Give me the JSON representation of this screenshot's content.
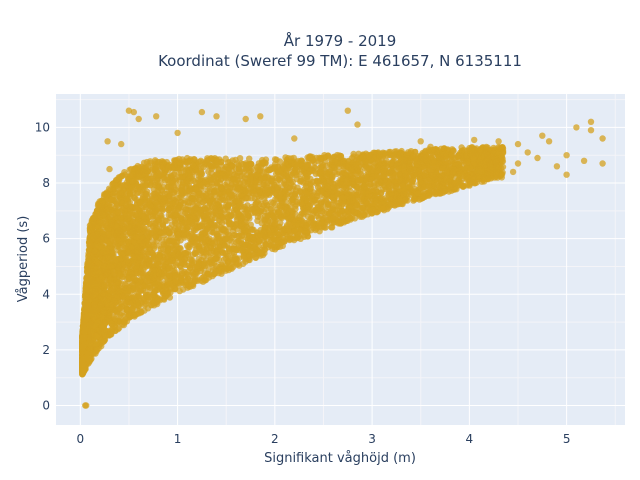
{
  "chart_data": {
    "type": "scatter",
    "title_line1": "År 1979 - 2019",
    "title_line2": "Koordinat (Sweref 99 TM): E 461657, N 6135111",
    "xlabel": "Signifikant våghöjd (m)",
    "ylabel": "Vågperiod (s)",
    "xlim": [
      -0.25,
      5.6
    ],
    "ylim": [
      -0.7,
      11.2
    ],
    "x_ticks": [
      0,
      1,
      2,
      3,
      4,
      5
    ],
    "y_ticks": [
      0,
      2,
      4,
      6,
      8,
      10
    ],
    "x_tick_labels": [
      "0",
      "1",
      "2",
      "3",
      "4",
      "5"
    ],
    "y_tick_labels": [
      "0",
      "2",
      "4",
      "6",
      "8",
      "10"
    ],
    "grid": true,
    "legend": "none",
    "plot_bgcolor": "#e5ecf6",
    "marker_color": "#d4a21f",
    "marker_opacity": 0.75,
    "envelope_description": {
      "lower_bound": [
        [
          0.02,
          1.1
        ],
        [
          0.1,
          1.6
        ],
        [
          0.3,
          2.5
        ],
        [
          0.6,
          3.3
        ],
        [
          1.0,
          4.0
        ],
        [
          1.5,
          4.8
        ],
        [
          2.0,
          5.6
        ],
        [
          2.5,
          6.3
        ],
        [
          3.0,
          6.9
        ],
        [
          3.5,
          7.4
        ],
        [
          4.0,
          7.9
        ],
        [
          4.3,
          8.2
        ]
      ],
      "upper_bound": [
        [
          0.02,
          2.5
        ],
        [
          0.1,
          6.5
        ],
        [
          0.2,
          7.4
        ],
        [
          0.4,
          8.3
        ],
        [
          0.7,
          8.8
        ],
        [
          1.0,
          8.9
        ],
        [
          1.5,
          8.9
        ],
        [
          2.0,
          8.9
        ],
        [
          2.5,
          9.0
        ],
        [
          3.0,
          9.1
        ],
        [
          3.5,
          9.2
        ],
        [
          4.0,
          9.3
        ],
        [
          4.3,
          9.3
        ]
      ]
    },
    "notable_points": [
      {
        "x": 0.05,
        "y": 0.0
      },
      {
        "x": 0.06,
        "y": 0.0
      },
      {
        "x": 0.5,
        "y": 10.6
      },
      {
        "x": 0.55,
        "y": 10.55
      },
      {
        "x": 0.6,
        "y": 10.3
      },
      {
        "x": 0.78,
        "y": 10.4
      },
      {
        "x": 1.25,
        "y": 10.55
      },
      {
        "x": 1.4,
        "y": 10.4
      },
      {
        "x": 1.7,
        "y": 10.3
      },
      {
        "x": 1.85,
        "y": 10.4
      },
      {
        "x": 2.75,
        "y": 10.6
      },
      {
        "x": 2.85,
        "y": 10.1
      },
      {
        "x": 0.28,
        "y": 9.5
      },
      {
        "x": 0.42,
        "y": 9.4
      },
      {
        "x": 0.3,
        "y": 8.5
      },
      {
        "x": 1.0,
        "y": 9.8
      },
      {
        "x": 2.2,
        "y": 9.6
      },
      {
        "x": 3.5,
        "y": 9.5
      },
      {
        "x": 3.6,
        "y": 9.3
      },
      {
        "x": 4.05,
        "y": 9.55
      },
      {
        "x": 4.3,
        "y": 9.5
      },
      {
        "x": 4.5,
        "y": 9.4
      },
      {
        "x": 4.5,
        "y": 8.7
      },
      {
        "x": 4.6,
        "y": 9.1
      },
      {
        "x": 4.7,
        "y": 8.9
      },
      {
        "x": 4.75,
        "y": 9.7
      },
      {
        "x": 4.82,
        "y": 9.5
      },
      {
        "x": 4.9,
        "y": 8.6
      },
      {
        "x": 5.0,
        "y": 8.3
      },
      {
        "x": 5.0,
        "y": 9.0
      },
      {
        "x": 5.1,
        "y": 10.0
      },
      {
        "x": 5.18,
        "y": 8.8
      },
      {
        "x": 5.25,
        "y": 10.2
      },
      {
        "x": 5.25,
        "y": 9.9
      },
      {
        "x": 5.37,
        "y": 9.6
      },
      {
        "x": 5.37,
        "y": 8.7
      },
      {
        "x": 4.45,
        "y": 8.4
      },
      {
        "x": 4.15,
        "y": 8.2
      }
    ]
  }
}
